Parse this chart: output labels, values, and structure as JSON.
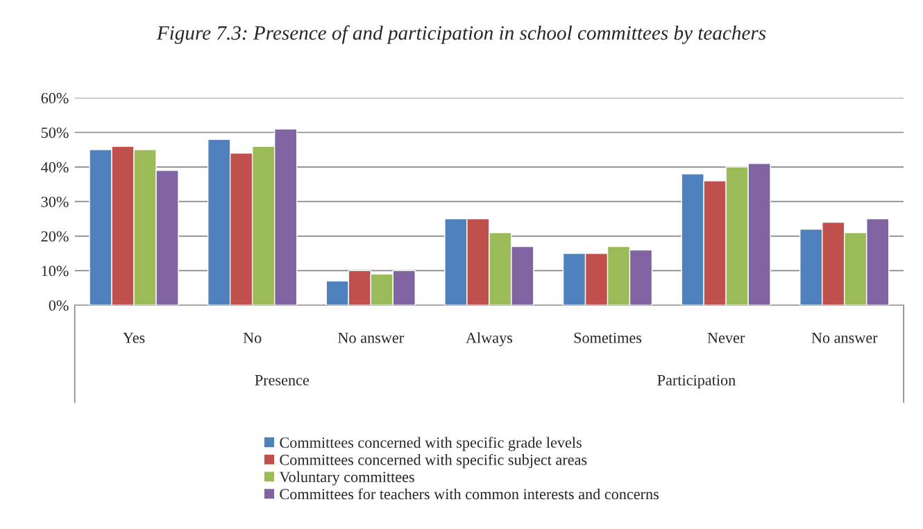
{
  "chart_data": {
    "type": "bar",
    "title": "Figure 7.3: Presence of and participation in school committees by teachers",
    "categories": [
      "Yes",
      "No",
      "No answer",
      "Always",
      "Sometimes",
      "Never",
      "No answer"
    ],
    "series": [
      {
        "name": "Committees concerned with specific grade levels",
        "color": "#4f81bd",
        "values": [
          45,
          48,
          7,
          25,
          15,
          38,
          22
        ]
      },
      {
        "name": "Committees concerned with specific subject areas",
        "color": "#c0504d",
        "values": [
          46,
          44,
          10,
          25,
          15,
          36,
          24
        ]
      },
      {
        "name": "Voluntary committees",
        "color": "#9bbb59",
        "values": [
          45,
          46,
          9,
          21,
          17,
          40,
          21
        ]
      },
      {
        "name": "Committees for teachers with common interests and concerns",
        "color": "#8064a2",
        "values": [
          39,
          51,
          10,
          17,
          16,
          41,
          25
        ]
      }
    ],
    "ylim": [
      0,
      60
    ],
    "yticks": [
      {
        "value": 0,
        "label": "0%"
      },
      {
        "value": 10,
        "label": "10%"
      },
      {
        "value": 20,
        "label": "20%"
      },
      {
        "value": 30,
        "label": "30%"
      },
      {
        "value": 40,
        "label": "40%"
      },
      {
        "value": 50,
        "label": "50%"
      },
      {
        "value": 60,
        "label": "60%"
      }
    ],
    "grid": "y",
    "legend": "bottom",
    "annotations": [
      "Presence",
      "Participation"
    ]
  }
}
